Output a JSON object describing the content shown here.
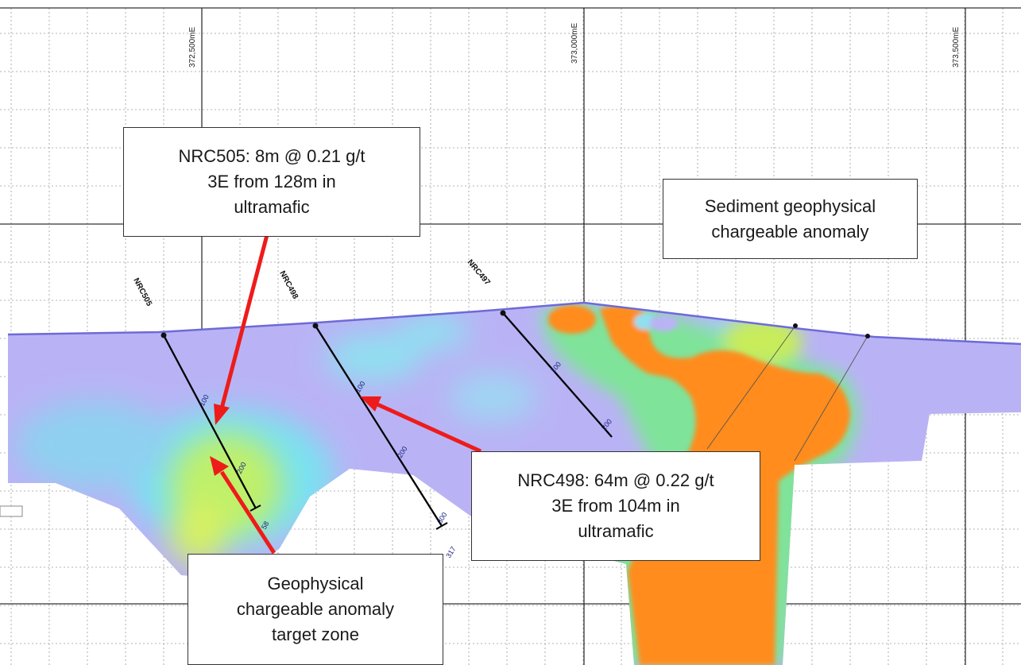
{
  "eastings": [
    "372,500mE",
    "373,000mE",
    "373,500mE"
  ],
  "drillholes": [
    {
      "name": "NRC505",
      "depth_ticks": [
        "100",
        "200",
        "58"
      ]
    },
    {
      "name": "NRC498",
      "depth_ticks": [
        "100",
        "200",
        "300",
        "317"
      ]
    },
    {
      "name": "NRC497",
      "depth_ticks": [
        "100",
        "200"
      ]
    }
  ],
  "callouts": {
    "nrc505": [
      "NRC505: 8m @ 0.21 g/t",
      "3E from 128m in",
      "ultramafic"
    ],
    "sediment": [
      "Sediment geophysical",
      "chargeable anomaly"
    ],
    "nrc498": [
      "NRC498: 64m @ 0.22 g/t",
      "3E from 104m in",
      "ultramafic"
    ],
    "target": [
      "Geophysical",
      "chargeable anomaly",
      "target zone"
    ]
  },
  "colors": {
    "background_low": "#b9b3f5",
    "moderate": "#79e2f0",
    "elevated": "#bff06a",
    "high": "#ff8c1a",
    "arrow": "#ee1b1b",
    "drill_trace": "#000000"
  }
}
